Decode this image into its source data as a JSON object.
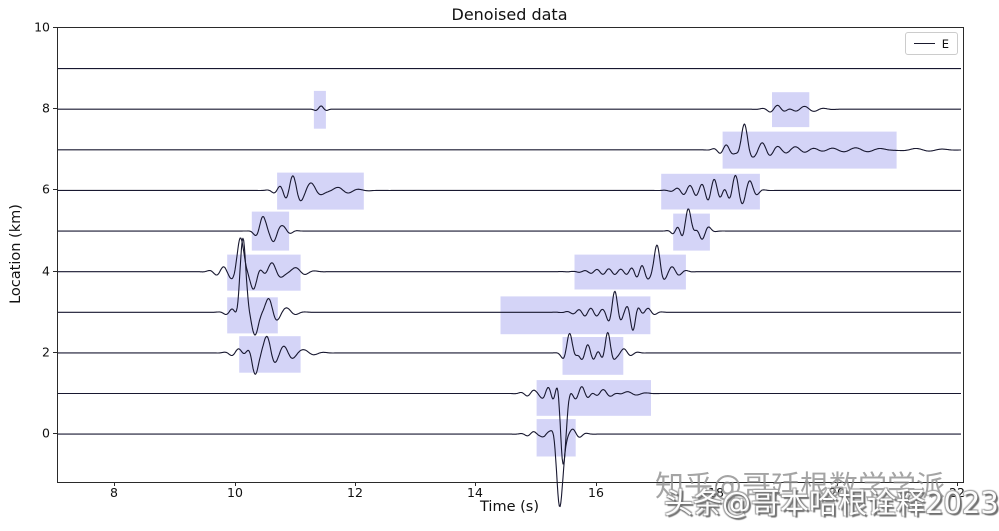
{
  "figure": {
    "title": "Denoised data",
    "xlabel": "Time (s)",
    "ylabel": "Location (km)",
    "legend": {
      "label": "E",
      "line_color": "#1a1a2e",
      "position": "upper right"
    }
  },
  "watermarks": [
    {
      "text": "知乎@哥廷根数学学派",
      "style": "gray"
    },
    {
      "text": "头条@哥本哈根诠释2023",
      "style": "white-emboss"
    }
  ],
  "chart_data": {
    "type": "line",
    "title": "Denoised data",
    "xlabel": "Time (s)",
    "ylabel": "Location (km)",
    "xlim": [
      7.05,
      22.05
    ],
    "ylim": [
      -1.13,
      10.0
    ],
    "x_ticks": [
      8,
      10,
      12,
      14,
      16,
      18,
      20,
      22
    ],
    "y_ticks": [
      0,
      2,
      4,
      6,
      8,
      10
    ],
    "grid": false,
    "legend": [
      "E"
    ],
    "legend_position": "upper right",
    "trace_color": "#181830",
    "highlight_color": "rgba(100,100,225,0.28)",
    "description": "Ten seismic traces plotted at 1 km offsets (locations 0-9); wavelet events are Gabor wavelets: amp*cos(2*pi*f*(t-tc))*exp(-((t-tc)/sig)^2) added to the trace baseline; lavender boxes mark detected arrival windows.",
    "traces": [
      {
        "location": 0,
        "events": [
          {
            "tc": 14.95,
            "amp": 0.06,
            "f": 4.5,
            "sig": 0.18
          },
          {
            "tc": 15.2,
            "amp": 0.1,
            "f": 5.0,
            "sig": 0.12
          },
          {
            "tc": 15.3,
            "amp": 0.35,
            "f": 3.2,
            "sig": 0.1
          },
          {
            "tc": 15.38,
            "amp": -1.8,
            "f": 1.6,
            "sig": 0.09
          },
          {
            "tc": 15.6,
            "amp": 0.12,
            "f": 4.0,
            "sig": 0.18
          }
        ]
      },
      {
        "location": 1,
        "events": [
          {
            "tc": 14.95,
            "amp": 0.08,
            "f": 4.5,
            "sig": 0.2
          },
          {
            "tc": 15.2,
            "amp": 0.15,
            "f": 5.0,
            "sig": 0.15
          },
          {
            "tc": 15.36,
            "amp": 0.4,
            "f": 3.5,
            "sig": 0.09
          },
          {
            "tc": 15.44,
            "amp": -1.7,
            "f": 1.6,
            "sig": 0.08
          },
          {
            "tc": 15.75,
            "amp": 0.18,
            "f": 4.5,
            "sig": 0.2
          },
          {
            "tc": 16.1,
            "amp": 0.1,
            "f": 4.0,
            "sig": 0.25
          },
          {
            "tc": 16.5,
            "amp": 0.05,
            "f": 3.0,
            "sig": 0.3
          }
        ]
      },
      {
        "location": 2,
        "events": [
          {
            "tc": 10.05,
            "amp": 0.1,
            "f": 4.0,
            "sig": 0.18
          },
          {
            "tc": 10.32,
            "amp": -0.5,
            "f": 3.0,
            "sig": 0.11
          },
          {
            "tc": 10.52,
            "amp": 0.35,
            "f": 3.2,
            "sig": 0.14
          },
          {
            "tc": 10.8,
            "amp": 0.15,
            "f": 3.5,
            "sig": 0.25
          },
          {
            "tc": 11.15,
            "amp": 0.07,
            "f": 3.0,
            "sig": 0.25
          },
          {
            "tc": 15.55,
            "amp": 0.5,
            "f": 3.5,
            "sig": 0.11
          },
          {
            "tc": 15.85,
            "amp": 0.2,
            "f": 5.0,
            "sig": 0.2
          },
          {
            "tc": 16.18,
            "amp": 0.5,
            "f": 3.8,
            "sig": 0.1
          },
          {
            "tc": 16.45,
            "amp": 0.1,
            "f": 4.0,
            "sig": 0.18
          }
        ]
      },
      {
        "location": 3,
        "events": [
          {
            "tc": 9.95,
            "amp": 0.1,
            "f": 4.0,
            "sig": 0.15
          },
          {
            "tc": 10.12,
            "amp": 1.8,
            "f": 2.2,
            "sig": 0.085
          },
          {
            "tc": 10.32,
            "amp": -0.55,
            "f": 2.8,
            "sig": 0.12
          },
          {
            "tc": 10.55,
            "amp": 0.32,
            "f": 3.2,
            "sig": 0.16
          },
          {
            "tc": 10.85,
            "amp": 0.1,
            "f": 3.0,
            "sig": 0.2
          },
          {
            "tc": 15.9,
            "amp": 0.1,
            "f": 5.0,
            "sig": 0.3
          },
          {
            "tc": 16.3,
            "amp": 0.5,
            "f": 4.0,
            "sig": 0.11
          },
          {
            "tc": 16.6,
            "amp": -0.45,
            "f": 4.0,
            "sig": 0.1
          },
          {
            "tc": 16.85,
            "amp": 0.1,
            "f": 4.0,
            "sig": 0.15
          }
        ]
      },
      {
        "location": 4,
        "events": [
          {
            "tc": 9.8,
            "amp": 0.12,
            "f": 4.0,
            "sig": 0.2
          },
          {
            "tc": 10.08,
            "amp": 0.8,
            "f": 2.6,
            "sig": 0.11
          },
          {
            "tc": 10.3,
            "amp": -0.45,
            "f": 3.0,
            "sig": 0.14
          },
          {
            "tc": 10.6,
            "amp": 0.22,
            "f": 3.2,
            "sig": 0.22
          },
          {
            "tc": 11.0,
            "amp": 0.1,
            "f": 3.0,
            "sig": 0.25
          },
          {
            "tc": 16.2,
            "amp": 0.07,
            "f": 5.0,
            "sig": 0.4
          },
          {
            "tc": 16.75,
            "amp": 0.15,
            "f": 5.5,
            "sig": 0.2
          },
          {
            "tc": 17.0,
            "amp": 0.65,
            "f": 3.2,
            "sig": 0.1
          },
          {
            "tc": 17.25,
            "amp": 0.12,
            "f": 4.0,
            "sig": 0.2
          }
        ]
      },
      {
        "location": 5,
        "events": [
          {
            "tc": 10.45,
            "amp": 0.35,
            "f": 3.4,
            "sig": 0.12
          },
          {
            "tc": 10.63,
            "amp": -0.22,
            "f": 4.0,
            "sig": 0.13
          },
          {
            "tc": 10.8,
            "amp": 0.1,
            "f": 4.0,
            "sig": 0.15
          },
          {
            "tc": 17.35,
            "amp": 0.12,
            "f": 5.0,
            "sig": 0.12
          },
          {
            "tc": 17.52,
            "amp": 0.55,
            "f": 3.0,
            "sig": 0.1
          },
          {
            "tc": 17.75,
            "amp": -0.2,
            "f": 4.0,
            "sig": 0.14
          }
        ]
      },
      {
        "location": 6,
        "events": [
          {
            "tc": 10.75,
            "amp": 0.12,
            "f": 4.0,
            "sig": 0.15
          },
          {
            "tc": 10.95,
            "amp": 0.32,
            "f": 3.4,
            "sig": 0.15
          },
          {
            "tc": 11.25,
            "amp": 0.18,
            "f": 3.0,
            "sig": 0.25
          },
          {
            "tc": 11.7,
            "amp": 0.08,
            "f": 2.8,
            "sig": 0.35
          },
          {
            "tc": 17.55,
            "amp": 0.12,
            "f": 4.5,
            "sig": 0.25
          },
          {
            "tc": 17.95,
            "amp": 0.28,
            "f": 4.5,
            "sig": 0.22
          },
          {
            "tc": 18.3,
            "amp": 0.38,
            "f": 4.2,
            "sig": 0.18
          },
          {
            "tc": 18.55,
            "amp": 0.18,
            "f": 4.0,
            "sig": 0.15
          }
        ]
      },
      {
        "location": 7,
        "events": [
          {
            "tc": 18.15,
            "amp": 0.12,
            "f": 4.5,
            "sig": 0.18
          },
          {
            "tc": 18.45,
            "amp": 0.6,
            "f": 2.9,
            "sig": 0.1
          },
          {
            "tc": 18.75,
            "amp": 0.18,
            "f": 3.5,
            "sig": 0.25
          },
          {
            "tc": 19.3,
            "amp": 0.08,
            "f": 3.0,
            "sig": 0.4
          },
          {
            "tc": 20.3,
            "amp": 0.05,
            "f": 2.5,
            "sig": 0.7
          },
          {
            "tc": 21.3,
            "amp": 0.04,
            "f": 2.2,
            "sig": 0.5
          }
        ]
      },
      {
        "location": 8,
        "events": [
          {
            "tc": 11.42,
            "amp": 0.08,
            "f": 4.5,
            "sig": 0.1
          },
          {
            "tc": 19.0,
            "amp": 0.1,
            "f": 3.8,
            "sig": 0.2
          },
          {
            "tc": 19.45,
            "amp": 0.07,
            "f": 3.0,
            "sig": 0.3
          }
        ]
      },
      {
        "location": 9,
        "events": []
      }
    ],
    "highlight_boxes": [
      {
        "t0": 15.0,
        "t1": 15.65,
        "top": 0.37,
        "bot": -0.55
      },
      {
        "t0": 15.0,
        "t1": 16.9,
        "top": 1.33,
        "bot": 0.45
      },
      {
        "t0": 10.06,
        "t1": 11.08,
        "top": 2.41,
        "bot": 1.51
      },
      {
        "t0": 15.43,
        "t1": 16.44,
        "top": 2.39,
        "bot": 1.46
      },
      {
        "t0": 9.86,
        "t1": 10.7,
        "top": 3.37,
        "bot": 2.48
      },
      {
        "t0": 14.4,
        "t1": 16.89,
        "top": 3.39,
        "bot": 2.46
      },
      {
        "t0": 9.86,
        "t1": 11.08,
        "top": 4.42,
        "bot": 3.53
      },
      {
        "t0": 15.63,
        "t1": 17.48,
        "top": 4.42,
        "bot": 3.56
      },
      {
        "t0": 10.27,
        "t1": 10.89,
        "top": 5.48,
        "bot": 4.52
      },
      {
        "t0": 17.27,
        "t1": 17.88,
        "top": 5.43,
        "bot": 4.52
      },
      {
        "t0": 10.69,
        "t1": 12.13,
        "top": 6.44,
        "bot": 5.53
      },
      {
        "t0": 17.07,
        "t1": 18.71,
        "top": 6.41,
        "bot": 5.53
      },
      {
        "t0": 18.09,
        "t1": 20.98,
        "top": 7.45,
        "bot": 6.54
      },
      {
        "t0": 11.3,
        "t1": 11.5,
        "top": 8.45,
        "bot": 7.52
      },
      {
        "t0": 18.91,
        "t1": 19.53,
        "top": 8.42,
        "bot": 7.56
      }
    ]
  }
}
